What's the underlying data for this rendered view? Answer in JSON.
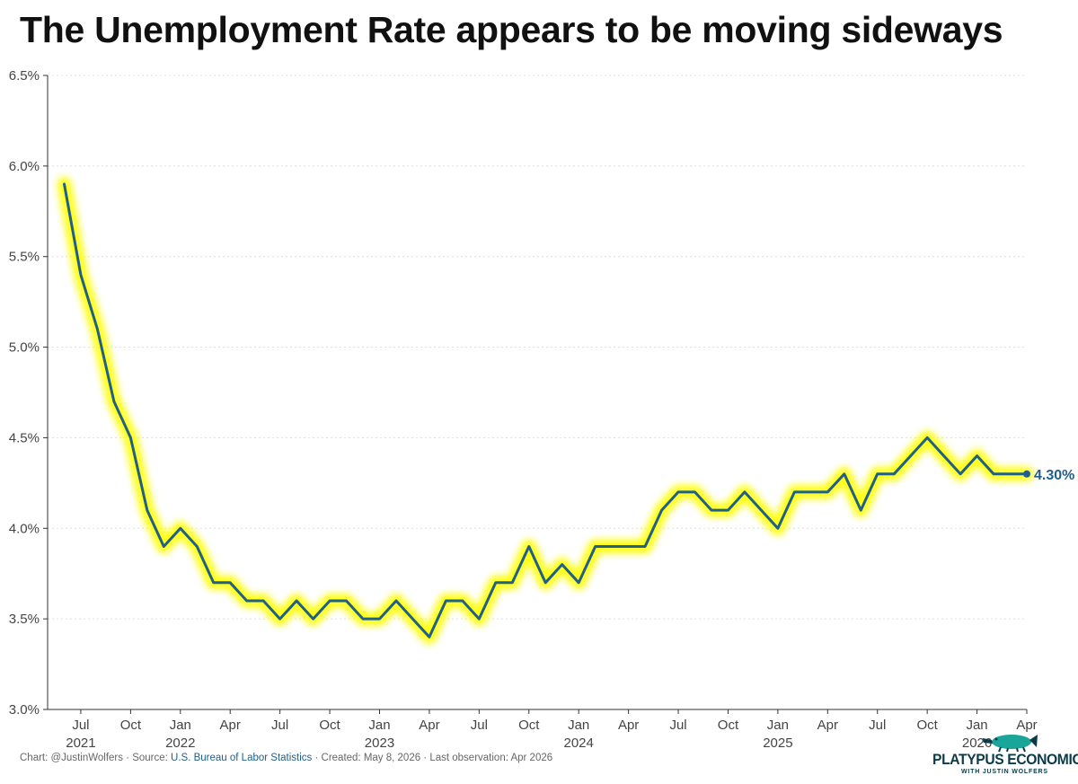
{
  "title": "The Unemployment Rate appears to be moving sideways",
  "footer": {
    "prefix": "Chart: @JustinWolfers · Source: ",
    "source_link": "U.S. Bureau of Labor Statistics",
    "suffix": " · Created: May 8, 2026 · Last observation: Apr 2026"
  },
  "logo": {
    "name": "PLATYPUS ECONOMICS",
    "tagline": "WITH JUSTIN WOLFERS"
  },
  "colors": {
    "line": "#1f5f8b",
    "glow": "#ffff00",
    "grid": "#dddddd",
    "axis": "#333333",
    "text": "#444444"
  },
  "chart_data": {
    "type": "line",
    "title": "The Unemployment Rate appears to be moving sideways",
    "xlabel": "",
    "ylabel": "",
    "ylim": [
      3.0,
      6.5
    ],
    "xlim": [
      "2021-05",
      "2026-04"
    ],
    "y_ticks": [
      "6.5%",
      "6.0%",
      "5.5%",
      "5.0%",
      "4.5%",
      "4.0%",
      "3.5%",
      "3.0%"
    ],
    "y_tick_values": [
      6.5,
      6.0,
      5.5,
      5.0,
      4.5,
      4.0,
      3.5,
      3.0
    ],
    "x_ticks": [
      {
        "month": "Jul",
        "year": "2021",
        "date": "2021-07"
      },
      {
        "month": "Oct",
        "year": "",
        "date": "2021-10"
      },
      {
        "month": "Jan",
        "year": "2022",
        "date": "2022-01"
      },
      {
        "month": "Apr",
        "year": "",
        "date": "2022-04"
      },
      {
        "month": "Jul",
        "year": "",
        "date": "2022-07"
      },
      {
        "month": "Oct",
        "year": "",
        "date": "2022-10"
      },
      {
        "month": "Jan",
        "year": "2023",
        "date": "2023-01"
      },
      {
        "month": "Apr",
        "year": "",
        "date": "2023-04"
      },
      {
        "month": "Jul",
        "year": "",
        "date": "2023-07"
      },
      {
        "month": "Oct",
        "year": "",
        "date": "2023-10"
      },
      {
        "month": "Jan",
        "year": "2024",
        "date": "2024-01"
      },
      {
        "month": "Apr",
        "year": "",
        "date": "2024-04"
      },
      {
        "month": "Jul",
        "year": "",
        "date": "2024-07"
      },
      {
        "month": "Oct",
        "year": "",
        "date": "2024-10"
      },
      {
        "month": "Jan",
        "year": "2025",
        "date": "2025-01"
      },
      {
        "month": "Apr",
        "year": "",
        "date": "2025-04"
      },
      {
        "month": "Jul",
        "year": "",
        "date": "2025-07"
      },
      {
        "month": "Oct",
        "year": "",
        "date": "2025-10"
      },
      {
        "month": "Jan",
        "year": "2026",
        "date": "2026-01"
      },
      {
        "month": "Apr",
        "year": "",
        "date": "2026-04"
      }
    ],
    "series": [
      {
        "name": "",
        "x": [
          "2021-06",
          "2021-07",
          "2021-08",
          "2021-09",
          "2021-10",
          "2021-11",
          "2021-12",
          "2022-01",
          "2022-02",
          "2022-03",
          "2022-04",
          "2022-05",
          "2022-06",
          "2022-07",
          "2022-08",
          "2022-09",
          "2022-10",
          "2022-11",
          "2022-12",
          "2023-01",
          "2023-02",
          "2023-03",
          "2023-04",
          "2023-05",
          "2023-06",
          "2023-07",
          "2023-08",
          "2023-09",
          "2023-10",
          "2023-11",
          "2023-12",
          "2024-01",
          "2024-02",
          "2024-03",
          "2024-04",
          "2024-05",
          "2024-06",
          "2024-07",
          "2024-08",
          "2024-09",
          "2024-10",
          "2024-11",
          "2024-12",
          "2025-01",
          "2025-02",
          "2025-03",
          "2025-04",
          "2025-05",
          "2025-06",
          "2025-07",
          "2025-08",
          "2025-09",
          "2025-10",
          "2025-12",
          "2026-01",
          "2026-02",
          "2026-03",
          "2026-04"
        ],
        "values": [
          5.9,
          5.4,
          5.1,
          4.7,
          4.5,
          4.1,
          3.9,
          4.0,
          3.9,
          3.7,
          3.7,
          3.6,
          3.6,
          3.5,
          3.6,
          3.5,
          3.6,
          3.6,
          3.5,
          3.5,
          3.6,
          3.5,
          3.4,
          3.6,
          3.6,
          3.5,
          3.7,
          3.7,
          3.9,
          3.7,
          3.8,
          3.7,
          3.9,
          3.9,
          3.9,
          3.9,
          4.1,
          4.2,
          4.2,
          4.1,
          4.1,
          4.2,
          4.1,
          4.0,
          4.2,
          4.2,
          4.2,
          4.3,
          4.1,
          4.3,
          4.3,
          4.4,
          4.5,
          4.3,
          4.4,
          4.3,
          4.3,
          4.3
        ]
      }
    ],
    "end_label": "4.30%"
  }
}
